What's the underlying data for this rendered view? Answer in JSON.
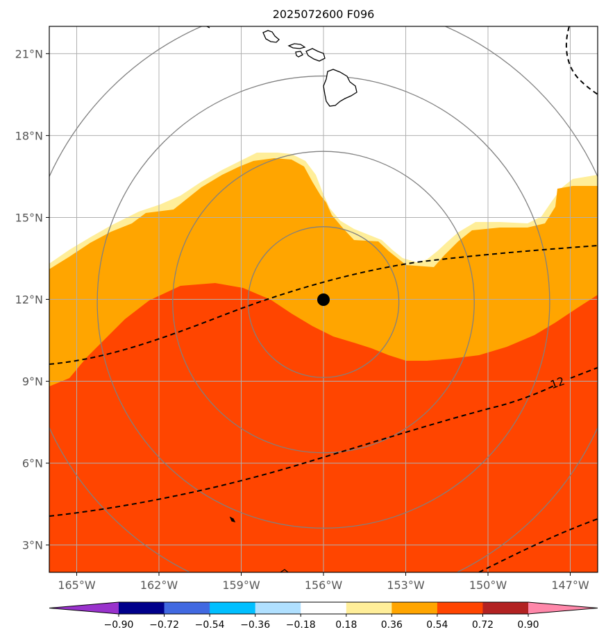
{
  "title": "2025072600 F096",
  "map": {
    "lon_range": [
      -166,
      -146
    ],
    "lat_range": [
      2,
      22
    ],
    "lon_ticks": [
      {
        "lon": -165,
        "label": "165°W"
      },
      {
        "lon": -162,
        "label": "162°W"
      },
      {
        "lon": -159,
        "label": "159°W"
      },
      {
        "lon": -156,
        "label": "156°W"
      },
      {
        "lon": -153,
        "label": "153°W"
      },
      {
        "lon": -150,
        "label": "150°W"
      },
      {
        "lon": -147,
        "label": "147°W"
      }
    ],
    "lat_ticks": [
      {
        "lat": 3,
        "label": "3°N"
      },
      {
        "lat": 6,
        "label": "6°N"
      },
      {
        "lat": 9,
        "label": "9°N"
      },
      {
        "lat": 12,
        "label": "12°N"
      },
      {
        "lat": 15,
        "label": "15°N"
      },
      {
        "lat": 18,
        "label": "18°N"
      },
      {
        "lat": 21,
        "label": "21°N"
      }
    ],
    "center": {
      "lon": -156,
      "lat": 11.9
    },
    "ring_radii_deg": [
      2.75,
      5.5,
      8.25,
      11.0
    ],
    "contour_label": "12"
  },
  "colorbar": {
    "colors": [
      "#9932cc",
      "#00008b",
      "#4169e1",
      "#00bfff",
      "#b0e0ff",
      "#ffffff",
      "#ffee99",
      "#ffa500",
      "#ff4500",
      "#b22222",
      "#ff88aa"
    ],
    "ticks": [
      "−0.90",
      "−0.72",
      "−0.54",
      "−0.36",
      "−0.18",
      "0.18",
      "0.36",
      "0.54",
      "0.72",
      "0.90"
    ]
  },
  "colors": {
    "orange": "#ffa500",
    "red_orange": "#ff4500",
    "pale_yellow": "#ffee99",
    "ring": "#808080",
    "grid": "#b0b0b0"
  }
}
